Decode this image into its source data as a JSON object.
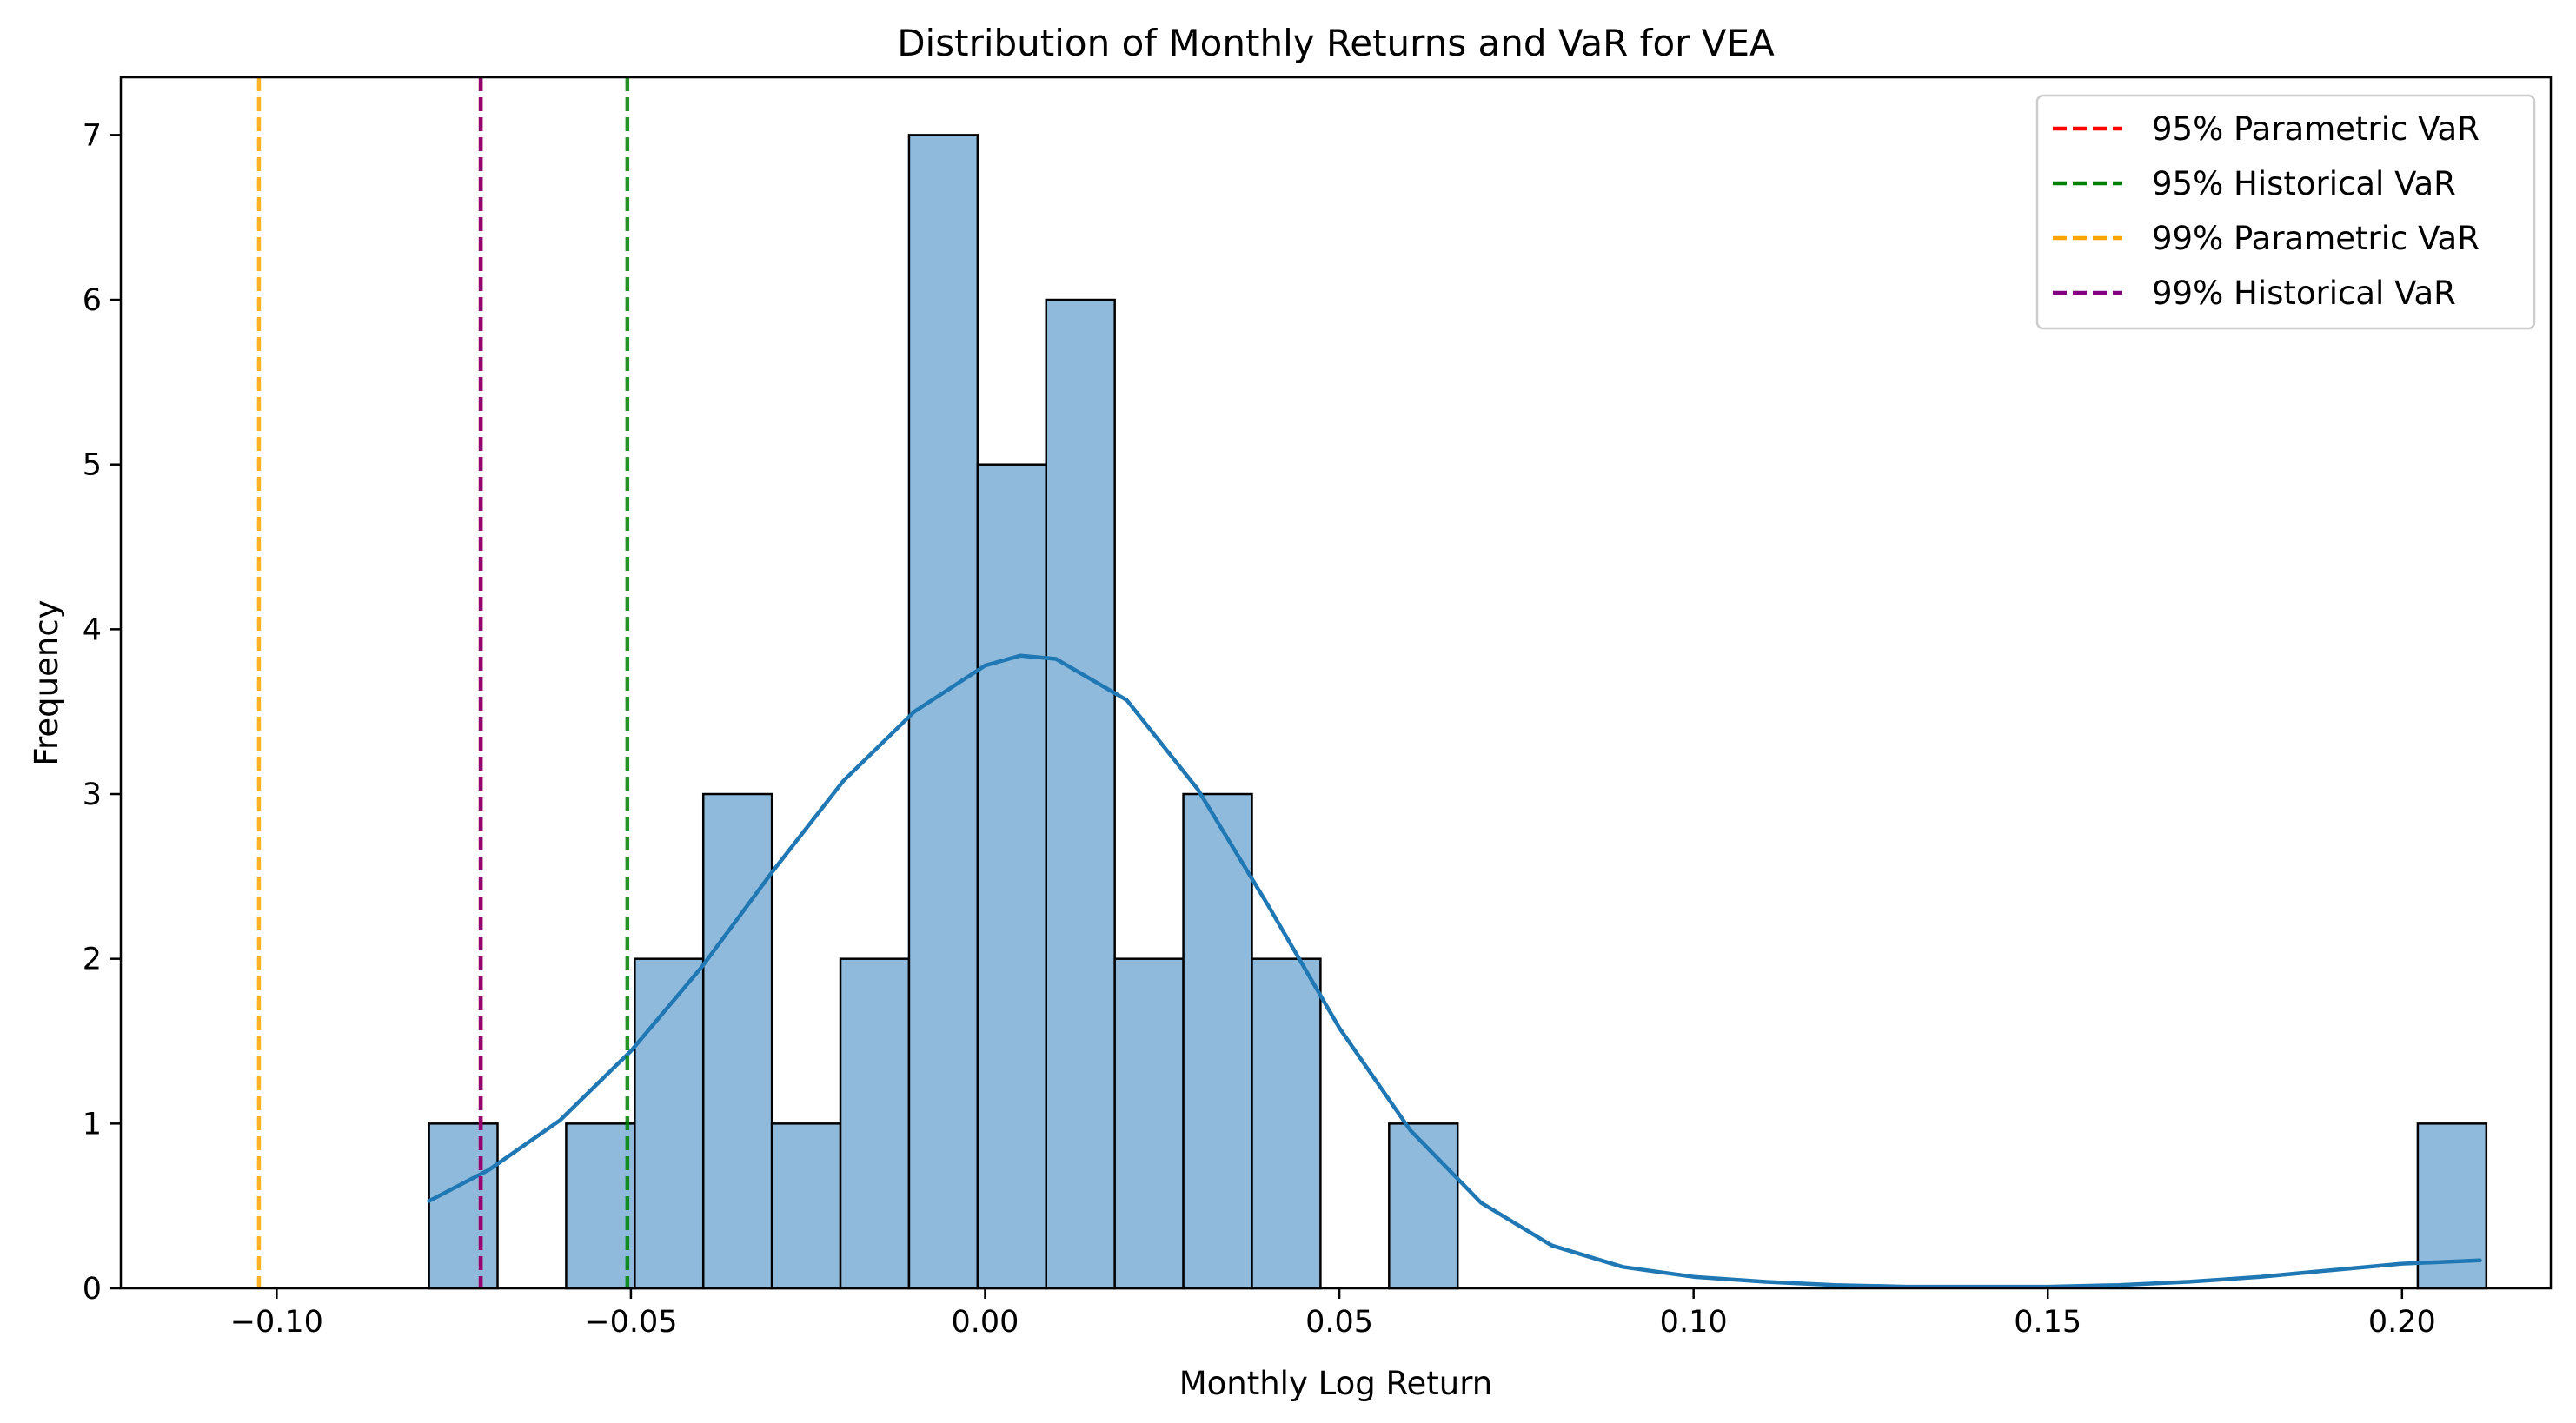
{
  "chart_data": {
    "type": "histogram",
    "title": "Distribution of Monthly Returns and VaR for VEA",
    "xlabel": "Monthly Log Return",
    "ylabel": "Frequency",
    "xlim": [
      -0.122,
      0.221
    ],
    "ylim": [
      0,
      7.35
    ],
    "x_ticks": [
      {
        "value": -0.1,
        "label": "−0.10"
      },
      {
        "value": -0.05,
        "label": "−0.05"
      },
      {
        "value": 0.0,
        "label": "0.00"
      },
      {
        "value": 0.05,
        "label": "0.05"
      },
      {
        "value": 0.1,
        "label": "0.10"
      },
      {
        "value": 0.15,
        "label": "0.15"
      },
      {
        "value": 0.2,
        "label": "0.20"
      }
    ],
    "y_ticks": [
      {
        "value": 0,
        "label": "0"
      },
      {
        "value": 1,
        "label": "1"
      },
      {
        "value": 2,
        "label": "2"
      },
      {
        "value": 3,
        "label": "3"
      },
      {
        "value": 4,
        "label": "4"
      },
      {
        "value": 5,
        "label": "5"
      },
      {
        "value": 6,
        "label": "6"
      },
      {
        "value": 7,
        "label": "7"
      }
    ],
    "bin_start": -0.0785,
    "bin_width": 0.00968,
    "counts": [
      1,
      0,
      1,
      2,
      3,
      1,
      2,
      7,
      5,
      6,
      2,
      3,
      2,
      0,
      1,
      0,
      0,
      0,
      0,
      0,
      0,
      0,
      0,
      0,
      0,
      0,
      0,
      0,
      0,
      1
    ],
    "bar_color": "#8fbadb",
    "bar_edge_color": "#000000",
    "kde": {
      "color": "#1f77b4",
      "x": [
        -0.0785,
        -0.07,
        -0.06,
        -0.05,
        -0.04,
        -0.03,
        -0.02,
        -0.01,
        0.0,
        0.005,
        0.01,
        0.02,
        0.03,
        0.04,
        0.05,
        0.06,
        0.07,
        0.08,
        0.09,
        0.1,
        0.11,
        0.12,
        0.13,
        0.14,
        0.15,
        0.16,
        0.17,
        0.18,
        0.19,
        0.2,
        0.211
      ],
      "y": [
        0.53,
        0.72,
        1.02,
        1.44,
        1.95,
        2.53,
        3.08,
        3.5,
        3.78,
        3.84,
        3.82,
        3.57,
        3.03,
        2.32,
        1.58,
        0.96,
        0.52,
        0.26,
        0.13,
        0.07,
        0.04,
        0.02,
        0.01,
        0.01,
        0.01,
        0.02,
        0.04,
        0.07,
        0.11,
        0.15,
        0.17
      ]
    },
    "var_lines": [
      {
        "name": "95% Parametric VaR",
        "value": -0.0712,
        "color": "#ff0000"
      },
      {
        "name": "95% Historical VaR",
        "value": -0.0505,
        "color": "#008000"
      },
      {
        "name": "99% Parametric VaR",
        "value": -0.1025,
        "color": "#ffa500"
      },
      {
        "name": "99% Historical VaR",
        "value": -0.0712,
        "color": "#800080"
      }
    ],
    "legend_position": "top-right"
  }
}
